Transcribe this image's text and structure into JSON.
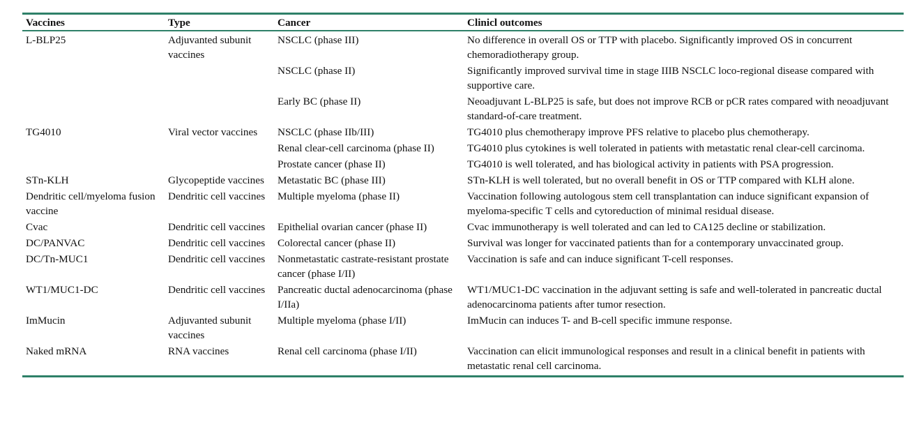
{
  "colors": {
    "rule": "#2e8068",
    "text": "#111111",
    "background": "#ffffff"
  },
  "table": {
    "headers": {
      "vaccines": "Vaccines",
      "type": "Type",
      "cancer": "Cancer",
      "outcomes": "Clinicl outcomes"
    },
    "rows": [
      {
        "vaccine": "L-BLP25",
        "type": "Adjuvanted subunit vaccines",
        "cancer": "NSCLC (phase III)",
        "outcome": "No difference in overall OS or TTP with placebo. Significantly improved OS in concurrent chemoradiotherapy group."
      },
      {
        "vaccine": "",
        "type": "",
        "cancer": "NSCLC (phase II)",
        "outcome": "Significantly improved survival time in stage IIIB NSCLC loco-regional disease compared with supportive care."
      },
      {
        "vaccine": "",
        "type": "",
        "cancer": "Early BC (phase II)",
        "outcome": "Neoadjuvant L-BLP25 is safe, but does not improve RCB or pCR rates compared with neoadjuvant standard-of-care treatment."
      },
      {
        "vaccine": "TG4010",
        "type": "Viral vector vaccines",
        "cancer": "NSCLC (phase IIb/III)",
        "outcome": "TG4010 plus chemotherapy improve PFS relative to placebo plus chemotherapy."
      },
      {
        "vaccine": "",
        "type": "",
        "cancer": "Renal clear-cell carcinoma (phase II)",
        "outcome": "TG4010 plus cytokines is well tolerated in patients with metastatic renal clear-cell carcinoma."
      },
      {
        "vaccine": "",
        "type": "",
        "cancer": "Prostate cancer (phase II)",
        "outcome": "TG4010 is well tolerated, and has biological activity in patients with PSA progression."
      },
      {
        "vaccine": "STn-KLH",
        "type": "Glycopeptide vaccines",
        "cancer": "Metastatic BC (phase III)",
        "outcome": "STn-KLH is well tolerated, but no overall benefit in OS or TTP compared with KLH alone."
      },
      {
        "vaccine": "Dendritic cell/myeloma fusion vaccine",
        "type": "Dendritic cell vaccines",
        "cancer": "Multiple myeloma (phase II)",
        "outcome": "Vaccination following autologous stem cell transplantation can induce significant expansion of myeloma-specific T cells and cytoreduction of minimal residual disease."
      },
      {
        "vaccine": "Cvac",
        "type": "Dendritic cell vaccines",
        "cancer": "Epithelial ovarian cancer (phase II)",
        "outcome": "Cvac immunotherapy is well tolerated and can led to CA125 decline or stabilization."
      },
      {
        "vaccine": "DC/PANVAC",
        "type": "Dendritic cell vaccines",
        "cancer": "Colorectal cancer (phase II)",
        "outcome": "Survival was longer for vaccinated patients than for a contemporary unvaccinated group."
      },
      {
        "vaccine": "DC/Tn-MUC1",
        "type": "Dendritic cell vaccines",
        "cancer": "Nonmetastatic castrate-resistant prostate cancer (phase I/II)",
        "outcome": "Vaccination is safe and can induce significant T-cell responses."
      },
      {
        "vaccine": "WT1/MUC1-DC",
        "type": "Dendritic cell vaccines",
        "cancer": "Pancreatic ductal adenocarcinoma (phase I/IIa)",
        "outcome": "WT1/MUC1-DC vaccination in the adjuvant setting is safe and well-tolerated in pancreatic ductal adenocarcinoma patients after tumor resection."
      },
      {
        "vaccine": "ImMucin",
        "type": "Adjuvanted subunit vaccines",
        "cancer": "Multiple myeloma (phase I/II)",
        "outcome": "ImMucin can induces T- and B-cell specific immune response."
      },
      {
        "vaccine": "Naked mRNA",
        "type": "RNA vaccines",
        "cancer": "Renal cell carcinoma (phase I/II)",
        "outcome": "Vaccination can elicit immunological responses and result in a clinical benefit in patients with metastatic renal cell carcinoma."
      }
    ]
  }
}
